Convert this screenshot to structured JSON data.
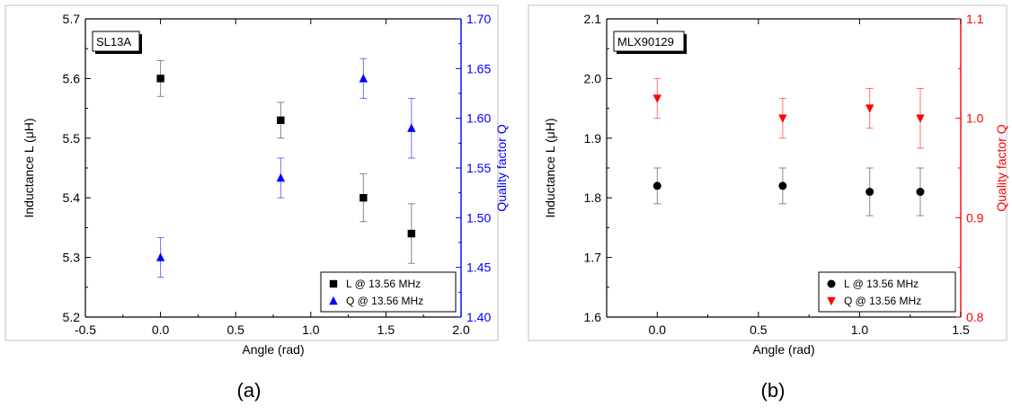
{
  "chart_data": [
    {
      "type": "scatter",
      "title": "",
      "tag": "SL13A",
      "caption": "(a)",
      "xlabel": "Angle (rad)",
      "ylabel": "Inductance L (μH)",
      "y2label": "Quality factor Q",
      "xlim": [
        -0.5,
        2.0
      ],
      "ylim": [
        5.2,
        5.7
      ],
      "y2lim": [
        1.4,
        1.7
      ],
      "x_ticks": [
        "-0.5",
        "0.0",
        "0.5",
        "1.0",
        "1.5",
        "2.0"
      ],
      "y_ticks": [
        "5.2",
        "5.3",
        "5.4",
        "5.5",
        "5.6",
        "5.7"
      ],
      "y2_ticks": [
        "1.40",
        "1.45",
        "1.50",
        "1.55",
        "1.60",
        "1.65",
        "1.70"
      ],
      "grid": false,
      "legend_position": "bottom-right",
      "colors": {
        "left": "#000000",
        "right": "#0000ff",
        "errorbar": "#888888"
      },
      "series": [
        {
          "name": "L @ 13.56 MHz",
          "marker": "square",
          "axis": "left",
          "color": "#000000",
          "x": [
            0.0,
            0.8,
            1.35,
            1.67
          ],
          "y": [
            5.6,
            5.53,
            5.4,
            5.34
          ],
          "err": [
            0.03,
            0.03,
            0.04,
            0.05
          ]
        },
        {
          "name": "Q @ 13.56 MHz",
          "marker": "triangle-up",
          "axis": "right",
          "color": "#0000ff",
          "x": [
            0.0,
            0.8,
            1.35,
            1.67
          ],
          "y": [
            1.46,
            1.54,
            1.64,
            1.59
          ],
          "err": [
            0.02,
            0.02,
            0.02,
            0.03
          ]
        }
      ]
    },
    {
      "type": "scatter",
      "title": "",
      "tag": "MLX90129",
      "caption": "(b)",
      "xlabel": "Angle (rad)",
      "ylabel": "Inductance L (μH)",
      "y2label": "Quality factor Q",
      "xlim": [
        -0.25,
        1.5
      ],
      "ylim": [
        1.6,
        2.1
      ],
      "y2lim": [
        0.8,
        1.1
      ],
      "x_ticks": [
        "0.0",
        "0.5",
        "1.0",
        "1.5"
      ],
      "y_ticks": [
        "1.6",
        "1.7",
        "1.8",
        "1.9",
        "2.0",
        "2.1"
      ],
      "y2_ticks": [
        "0.8",
        "0.9",
        "1.0",
        "1.1"
      ],
      "grid": false,
      "legend_position": "bottom-right",
      "colors": {
        "left": "#000000",
        "right": "#ff0000",
        "errorbar": "#888888"
      },
      "series": [
        {
          "name": "L @ 13.56 MHz",
          "marker": "circle",
          "axis": "left",
          "color": "#000000",
          "x": [
            0.0,
            0.62,
            1.05,
            1.3
          ],
          "y": [
            1.82,
            1.82,
            1.81,
            1.81
          ],
          "err": [
            0.03,
            0.03,
            0.04,
            0.04
          ]
        },
        {
          "name": "Q @ 13.56 MHz",
          "marker": "triangle-down",
          "axis": "right",
          "color": "#ff0000",
          "x": [
            0.0,
            0.62,
            1.05,
            1.3
          ],
          "y": [
            1.02,
            1.0,
            1.01,
            1.0
          ],
          "err": [
            0.02,
            0.02,
            0.02,
            0.03
          ]
        }
      ]
    }
  ]
}
